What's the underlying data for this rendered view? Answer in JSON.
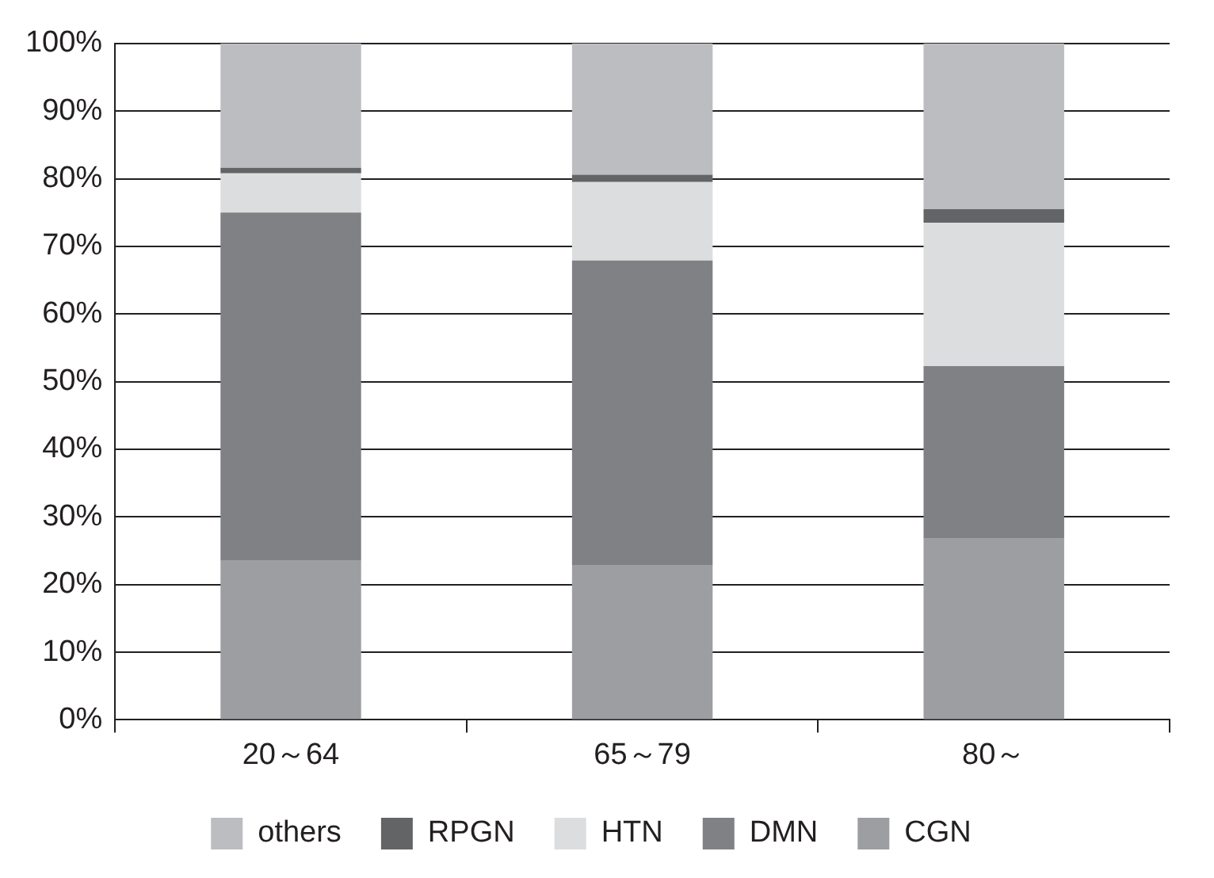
{
  "chart_data": {
    "type": "bar",
    "stacked": true,
    "categories": [
      "20～64",
      "65～79",
      "80～"
    ],
    "series": [
      {
        "name": "CGN",
        "color": "#9d9ea1",
        "values": [
          23.5,
          22.8,
          26.8
        ]
      },
      {
        "name": "DMN",
        "color": "#808184",
        "values": [
          51.5,
          45.1,
          25.5
        ]
      },
      {
        "name": "HTN",
        "color": "#dcdddf",
        "values": [
          5.8,
          11.6,
          21.2
        ]
      },
      {
        "name": "RPGN",
        "color": "#636466",
        "values": [
          0.8,
          1.1,
          2.0
        ]
      },
      {
        "name": "others",
        "color": "#bcbdc0",
        "values": [
          18.4,
          19.4,
          24.5
        ]
      }
    ],
    "ylim": [
      0,
      100
    ],
    "yticks": [
      {
        "value": 0,
        "label": "0%"
      },
      {
        "value": 10,
        "label": "10%"
      },
      {
        "value": 20,
        "label": "20%"
      },
      {
        "value": 30,
        "label": "30%"
      },
      {
        "value": 40,
        "label": "40%"
      },
      {
        "value": 50,
        "label": "50%"
      },
      {
        "value": 60,
        "label": "60%"
      },
      {
        "value": 70,
        "label": "70%"
      },
      {
        "value": 80,
        "label": "80%"
      },
      {
        "value": 90,
        "label": "90%"
      },
      {
        "value": 100,
        "label": "100%"
      }
    ],
    "grid": "y",
    "legend": "bottom"
  }
}
